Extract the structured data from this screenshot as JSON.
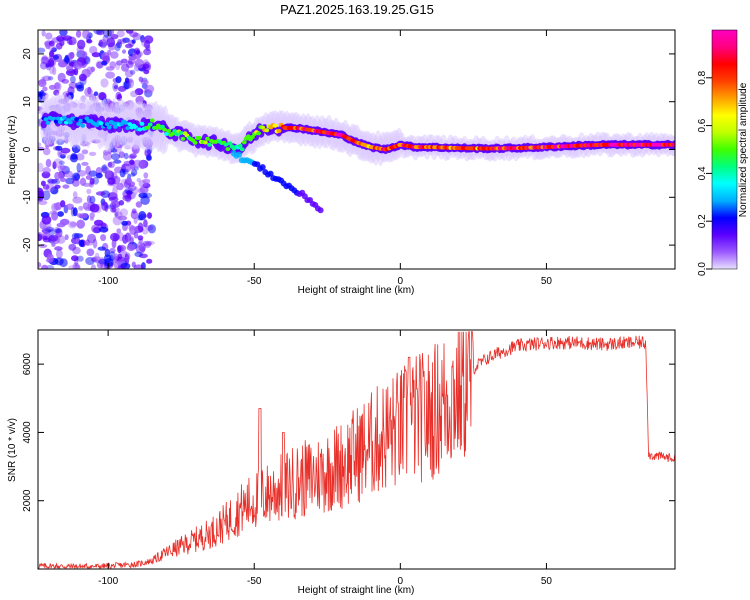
{
  "figure": {
    "title": "PAZ1.2025.163.19.25.G15"
  },
  "colorbar": {
    "label": "Normalized spectral amplitude",
    "range": [
      0.0,
      1.0
    ],
    "ticks": [
      "0.0",
      "0.2",
      "0.4",
      "0.6",
      "0.8"
    ],
    "colors": [
      "#e8e0ff",
      "#9b59ff",
      "#5b00ff",
      "#0000ff",
      "#00b0ff",
      "#00ffff",
      "#00ff80",
      "#40ff00",
      "#c0ff00",
      "#ffff00",
      "#ffa000",
      "#ff4000",
      "#ff0000",
      "#ff0080",
      "#ff00c0"
    ]
  },
  "chart_data": [
    {
      "type": "heatmap",
      "xlabel": "Height of straight line (km)",
      "ylabel": "Frequency (Hz)",
      "xlim": [
        -124,
        94
      ],
      "ylim": [
        -25,
        25
      ],
      "xticks": [
        "-100",
        "-50",
        "0",
        "50"
      ],
      "xtick_values": [
        -100,
        -50,
        0,
        50
      ],
      "yticks": [
        "-20",
        "-10",
        "0",
        "10",
        "20"
      ],
      "ytick_values": [
        -20,
        -10,
        0,
        10,
        20
      ],
      "ridge": {
        "x": [
          -122,
          -115,
          -110,
          -105,
          -100,
          -95,
          -90,
          -85,
          -80,
          -75,
          -70,
          -65,
          -60,
          -55,
          -52,
          -48,
          -45,
          -40,
          -35,
          -30,
          -25,
          -20,
          -15,
          -10,
          -5,
          0,
          5,
          10,
          20,
          30,
          40,
          50,
          60,
          70,
          80,
          90,
          94
        ],
        "y": [
          6,
          6.5,
          5.5,
          6,
          5,
          5.5,
          4.5,
          5.5,
          4,
          3,
          2,
          1.5,
          1,
          0,
          2,
          4,
          4.5,
          4.5,
          4.5,
          4,
          3.5,
          3,
          1.5,
          0.5,
          0,
          1,
          0.5,
          0.5,
          0.3,
          0.2,
          0.3,
          0.5,
          0.8,
          1,
          1,
          1,
          1
        ],
        "amplitude": [
          0.25,
          0.3,
          0.25,
          0.3,
          0.28,
          0.3,
          0.35,
          0.45,
          0.45,
          0.5,
          0.55,
          0.5,
          0.45,
          0.4,
          0.55,
          0.6,
          0.65,
          0.75,
          0.8,
          0.85,
          0.9,
          0.9,
          0.8,
          0.75,
          0.8,
          0.85,
          0.8,
          0.78,
          0.75,
          0.8,
          0.82,
          0.85,
          0.88,
          0.9,
          0.92,
          0.95,
          0.95
        ]
      },
      "secondary_branch": {
        "x": [
          -57,
          -50,
          -45,
          -40,
          -35,
          -30,
          -27
        ],
        "y": [
          -1,
          -3,
          -5,
          -7,
          -9,
          -11,
          -13
        ],
        "amplitude": [
          0.3,
          0.25,
          0.22,
          0.2,
          0.18,
          0.15,
          0.12
        ]
      },
      "scatter_region": {
        "x_range": [
          -124,
          -85
        ],
        "y_range": [
          -25,
          25
        ],
        "amplitude": 0.15
      }
    },
    {
      "type": "line",
      "xlabel": "Height of straight line (km)",
      "ylabel": "SNR (10 * v/v)",
      "xlim": [
        -124,
        94
      ],
      "ylim": [
        0,
        7000
      ],
      "xticks": [
        "-100",
        "-50",
        "0",
        "50"
      ],
      "xtick_values": [
        -100,
        -50,
        0,
        50
      ],
      "yticks": [
        "2000",
        "4000",
        "6000"
      ],
      "ytick_values": [
        2000,
        4000,
        6000
      ],
      "color": "#e8302a",
      "series": [
        {
          "x": [
            -124,
            -110,
            -100,
            -90,
            -85,
            -80,
            -75,
            -70,
            -65,
            -60,
            -55,
            -50,
            -45,
            -40,
            -35,
            -30,
            -25,
            -20,
            -15,
            -10,
            -5,
            0,
            5,
            10,
            15,
            20,
            25,
            30,
            35,
            40,
            50,
            60,
            70,
            80,
            84,
            85,
            90,
            94
          ],
          "y": [
            100,
            80,
            90,
            150,
            250,
            500,
            700,
            900,
            1100,
            1400,
            1800,
            2100,
            2300,
            2500,
            2700,
            2800,
            3000,
            3200,
            3500,
            3800,
            4100,
            4300,
            4600,
            4700,
            5100,
            5500,
            5900,
            6200,
            6400,
            6550,
            6650,
            6650,
            6600,
            6650,
            6650,
            3350,
            3300,
            3250
          ]
        }
      ],
      "spikes": [
        {
          "x": -48,
          "y": 4700
        },
        {
          "x": -40,
          "y": 4000
        },
        {
          "x": 3,
          "y": 6200
        }
      ]
    }
  ]
}
